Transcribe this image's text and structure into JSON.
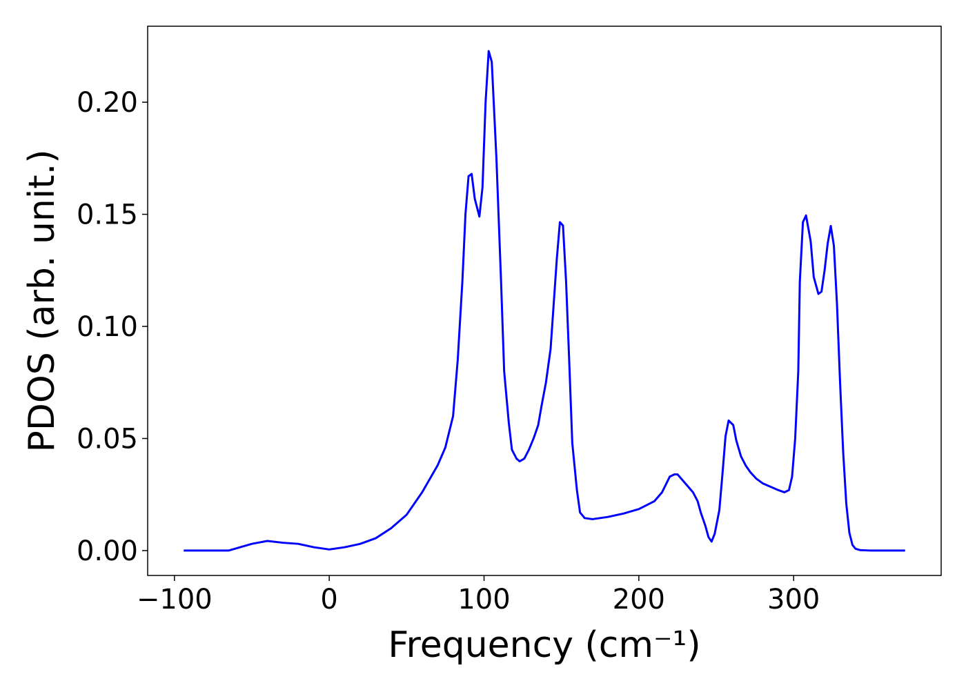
{
  "chart_data": {
    "type": "line",
    "x_label": "Frequency (cm⁻¹)",
    "y_label": "PDOS (arb. unit.)",
    "xlim": [
      -117.3,
      395.3
    ],
    "ylim": [
      -0.0111,
      0.2339
    ],
    "xticks": [
      {
        "value": -100,
        "label": "−100"
      },
      0,
      100,
      200,
      300
    ],
    "yticks": [
      {
        "value": 0,
        "label": "0.00"
      },
      {
        "value": 0.05,
        "label": "0.05"
      },
      {
        "value": 0.1,
        "label": "0.10"
      },
      {
        "value": 0.15,
        "label": "0.15"
      },
      {
        "value": 0.2,
        "label": "0.20"
      }
    ],
    "grid": false,
    "x": [
      -94,
      -65,
      -60,
      -50,
      -40,
      -30,
      -20,
      -10,
      0,
      10,
      20,
      30,
      40,
      50,
      60,
      70,
      75,
      80,
      83,
      86,
      88,
      90,
      92,
      94,
      97,
      99,
      101,
      103,
      105,
      108,
      111,
      113,
      116,
      118,
      121,
      123,
      126,
      129,
      132,
      135,
      137,
      140,
      143,
      145,
      147,
      149,
      151,
      153,
      155,
      157,
      160,
      162,
      165,
      170,
      180,
      190,
      200,
      210,
      215,
      220,
      223,
      225,
      230,
      235,
      238,
      240,
      243,
      245,
      247,
      249,
      252,
      254,
      256,
      258,
      261,
      263,
      266,
      269,
      272,
      276,
      280,
      290,
      294,
      297,
      299,
      301,
      303,
      304,
      306,
      308,
      311,
      313,
      316,
      318,
      320,
      322,
      324,
      326,
      328,
      330,
      332,
      334,
      336,
      338,
      340,
      343,
      350,
      372
    ],
    "series": [
      {
        "color": "#0000ff",
        "values": [
          0,
          0,
          0.001,
          0.003,
          0.0043,
          0.0035,
          0.003,
          0.0015,
          0.0005,
          0.0015,
          0.003,
          0.0055,
          0.01,
          0.016,
          0.026,
          0.038,
          0.046,
          0.06,
          0.085,
          0.12,
          0.15,
          0.167,
          0.168,
          0.157,
          0.149,
          0.162,
          0.2,
          0.2228,
          0.218,
          0.175,
          0.12,
          0.08,
          0.057,
          0.045,
          0.041,
          0.0398,
          0.041,
          0.045,
          0.05,
          0.056,
          0.064,
          0.075,
          0.09,
          0.11,
          0.13,
          0.1465,
          0.145,
          0.12,
          0.085,
          0.048,
          0.027,
          0.017,
          0.0145,
          0.014,
          0.015,
          0.0165,
          0.0185,
          0.022,
          0.026,
          0.033,
          0.034,
          0.034,
          0.03,
          0.026,
          0.022,
          0.017,
          0.011,
          0.006,
          0.004,
          0.0075,
          0.018,
          0.034,
          0.051,
          0.058,
          0.056,
          0.049,
          0.042,
          0.038,
          0.035,
          0.032,
          0.03,
          0.027,
          0.026,
          0.027,
          0.033,
          0.05,
          0.08,
          0.12,
          0.1465,
          0.1495,
          0.138,
          0.122,
          0.1145,
          0.1155,
          0.125,
          0.137,
          0.1448,
          0.136,
          0.11,
          0.075,
          0.044,
          0.021,
          0.008,
          0.0025,
          0.0008,
          0.0002,
          0,
          0
        ]
      }
    ]
  }
}
